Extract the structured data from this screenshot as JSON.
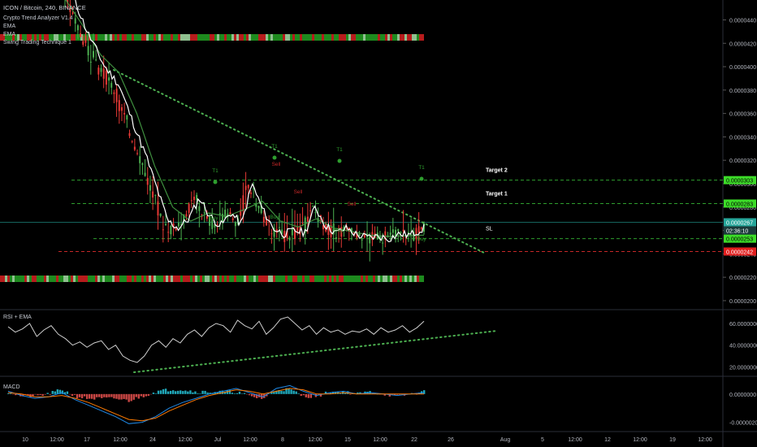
{
  "header": {
    "title": "ICON / Bitcoin, 240, BINANCE",
    "indicators": [
      "Crypto Trend Analyzer V1.4",
      "EMA",
      "EMA",
      "Swing Trading Technique 1"
    ]
  },
  "colors": {
    "background": "#000000",
    "price_line": "#ffffff",
    "ema": "#3f8f3f",
    "candle_up": "#4caf50",
    "candle_down": "#e53935",
    "level_green": "#2e9e2e",
    "level_red": "#c62828",
    "trendline": "#4caf50",
    "label_green": "#3cdc28",
    "label_teal": "#26a69a",
    "label_red": "#e11d1d",
    "macd_blue": "#1e88e5",
    "macd_orange": "#ff7b00",
    "hist_teal": "#26c6da",
    "hist_red": "#ef5350"
  },
  "chart_data": [
    {
      "type": "line",
      "name": "price",
      "x_ticks": [
        "10",
        "12:00",
        "17",
        "12:00",
        "24",
        "12:00",
        "Jul",
        "12:00",
        "8",
        "12:00",
        "15",
        "12:00",
        "22",
        "26",
        "Aug",
        "5",
        "12:00",
        "12",
        "12:00",
        "19",
        "12:00"
      ],
      "y_ticks": [
        "0.0000440",
        "0.0000420",
        "0.0000400",
        "0.0000380",
        "0.0000360",
        "0.0000340",
        "0.0000320",
        "0.0000300",
        "0.0000280",
        "0.0000260",
        "0.0000240",
        "0.0000220",
        "0.0000200"
      ],
      "ylim": [
        1.93e-05,
        4.57e-05
      ],
      "price_path": [
        [
          0.0,
          4.6e-05
        ],
        [
          0.04,
          4.3e-05
        ],
        [
          0.09,
          4e-05
        ],
        [
          0.13,
          3.85e-05
        ],
        [
          0.18,
          3.45e-05
        ],
        [
          0.21,
          3.22e-05
        ],
        [
          0.24,
          2.95e-05
        ],
        [
          0.27,
          2.68e-05
        ],
        [
          0.3,
          2.62e-05
        ],
        [
          0.33,
          2.7e-05
        ],
        [
          0.36,
          2.88e-05
        ],
        [
          0.39,
          2.72e-05
        ],
        [
          0.42,
          2.64e-05
        ],
        [
          0.45,
          2.75e-05
        ],
        [
          0.48,
          2.65e-05
        ],
        [
          0.51,
          3e-05
        ],
        [
          0.54,
          2.78e-05
        ],
        [
          0.57,
          2.62e-05
        ],
        [
          0.6,
          2.57e-05
        ],
        [
          0.63,
          2.6e-05
        ],
        [
          0.66,
          2.58e-05
        ],
        [
          0.69,
          2.8e-05
        ],
        [
          0.72,
          2.64e-05
        ],
        [
          0.75,
          2.58e-05
        ],
        [
          0.78,
          2.62e-05
        ],
        [
          0.81,
          2.56e-05
        ],
        [
          0.84,
          2.54e-05
        ],
        [
          0.87,
          2.55e-05
        ],
        [
          0.9,
          2.53e-05
        ],
        [
          0.93,
          2.57e-05
        ],
        [
          0.96,
          2.56e-05
        ],
        [
          1.0,
          2.62e-05
        ]
      ],
      "ema_path": [
        [
          0.0,
          4.58e-05
        ],
        [
          0.05,
          4.35e-05
        ],
        [
          0.1,
          4.1e-05
        ],
        [
          0.15,
          3.95e-05
        ],
        [
          0.2,
          3.6e-05
        ],
        [
          0.25,
          3.15e-05
        ],
        [
          0.3,
          2.8e-05
        ],
        [
          0.35,
          2.68e-05
        ],
        [
          0.4,
          2.75e-05
        ],
        [
          0.45,
          2.72e-05
        ],
        [
          0.5,
          2.78e-05
        ],
        [
          0.55,
          2.85e-05
        ],
        [
          0.6,
          2.68e-05
        ],
        [
          0.65,
          2.63e-05
        ],
        [
          0.7,
          2.7e-05
        ],
        [
          0.75,
          2.62e-05
        ],
        [
          0.8,
          2.59e-05
        ],
        [
          0.85,
          2.56e-05
        ],
        [
          0.9,
          2.55e-05
        ],
        [
          1.0,
          2.56e-05
        ]
      ],
      "levels": [
        {
          "label": "Target 2",
          "value": 3.03e-05,
          "color": "#2e9e2e"
        },
        {
          "label": "Target 1",
          "value": 2.83e-05,
          "color": "#2e9e2e"
        },
        {
          "label": "SL",
          "value": 2.53e-05,
          "color": "#2e9e2e"
        },
        {
          "label": "",
          "value": 2.42e-05,
          "color": "#c62828"
        }
      ],
      "price_tags": [
        {
          "text": "0.0000303",
          "value": 3.03e-05,
          "bg": "#3cdc28",
          "fg": "#000000"
        },
        {
          "text": "0.0000283",
          "value": 2.83e-05,
          "bg": "#3cdc28",
          "fg": "#000000"
        },
        {
          "text": "0.0000267",
          "value": 2.67e-05,
          "bg": "#26a69a",
          "fg": "#ffffff"
        },
        {
          "text": "02:36:10",
          "value": 2.6e-05,
          "bg": "#1b3b3b",
          "fg": "#ffffff"
        },
        {
          "text": "0.0000253",
          "value": 2.53e-05,
          "bg": "#3cdc28",
          "fg": "#000000"
        },
        {
          "text": "0.0000242",
          "value": 2.42e-05,
          "bg": "#e11d1d",
          "fg": "#ffffff"
        }
      ],
      "annotations": [
        {
          "text": "T1",
          "kind": "t1"
        },
        {
          "text": "T1",
          "kind": "t1"
        },
        {
          "text": "T1",
          "kind": "t1"
        },
        {
          "text": "T1",
          "kind": "t1"
        },
        {
          "text": "Buy",
          "kind": "buy"
        },
        {
          "text": "Buy",
          "kind": "buy"
        },
        {
          "text": "Buy",
          "kind": "buy"
        },
        {
          "text": "Buy",
          "kind": "buy"
        },
        {
          "text": "Sell",
          "kind": "sell"
        },
        {
          "text": "Sell",
          "kind": "sell"
        },
        {
          "text": "Sell",
          "kind": "sell"
        }
      ]
    },
    {
      "type": "line",
      "name": "RSI + EMA",
      "y_ticks": [
        "60.0000000",
        "40.0000000",
        "20.0000000"
      ],
      "ylim": [
        12,
        72
      ],
      "values": [
        57,
        52,
        55,
        60,
        48,
        54,
        58,
        50,
        46,
        40,
        43,
        38,
        42,
        44,
        36,
        40,
        30,
        26,
        24,
        30,
        40,
        44,
        38,
        46,
        42,
        50,
        54,
        48,
        56,
        60,
        58,
        52,
        63,
        58,
        55,
        62,
        50,
        56,
        64,
        66,
        60,
        54,
        58,
        50,
        56,
        52,
        54,
        50,
        53,
        52,
        55,
        50,
        56,
        52,
        54,
        58,
        52,
        56,
        62
      ]
    },
    {
      "type": "line",
      "name": "MACD",
      "y_ticks": [
        "0.0000000",
        "-0.0000020"
      ],
      "ylim": [
        -2.6e-06,
        1.2e-06
      ],
      "macd": [
        0.2,
        -0.1,
        -0.3,
        -0.2,
        0.1,
        -0.4,
        -0.8,
        -1.2,
        -1.6,
        -2.1,
        -2.0,
        -1.6,
        -1.0,
        -0.6,
        -0.3,
        0.0,
        0.2,
        0.4,
        0.1,
        -0.2,
        0.4,
        0.6,
        0.2,
        -0.1,
        0.1,
        0.2,
        0.0,
        0.1,
        0.0,
        -0.1,
        0.0,
        0.1
      ],
      "signal": [
        0.1,
        0.0,
        -0.2,
        -0.2,
        -0.1,
        -0.3,
        -0.6,
        -1.0,
        -1.4,
        -1.8,
        -1.9,
        -1.7,
        -1.2,
        -0.8,
        -0.4,
        -0.1,
        0.1,
        0.3,
        0.2,
        0.0,
        0.2,
        0.4,
        0.3,
        0.0,
        0.0,
        0.1,
        0.0,
        0.0,
        0.0,
        0.0,
        0.0,
        0.0
      ]
    }
  ],
  "panels": {
    "rsi_title": "RSI + EMA",
    "macd_title": "MACD"
  }
}
